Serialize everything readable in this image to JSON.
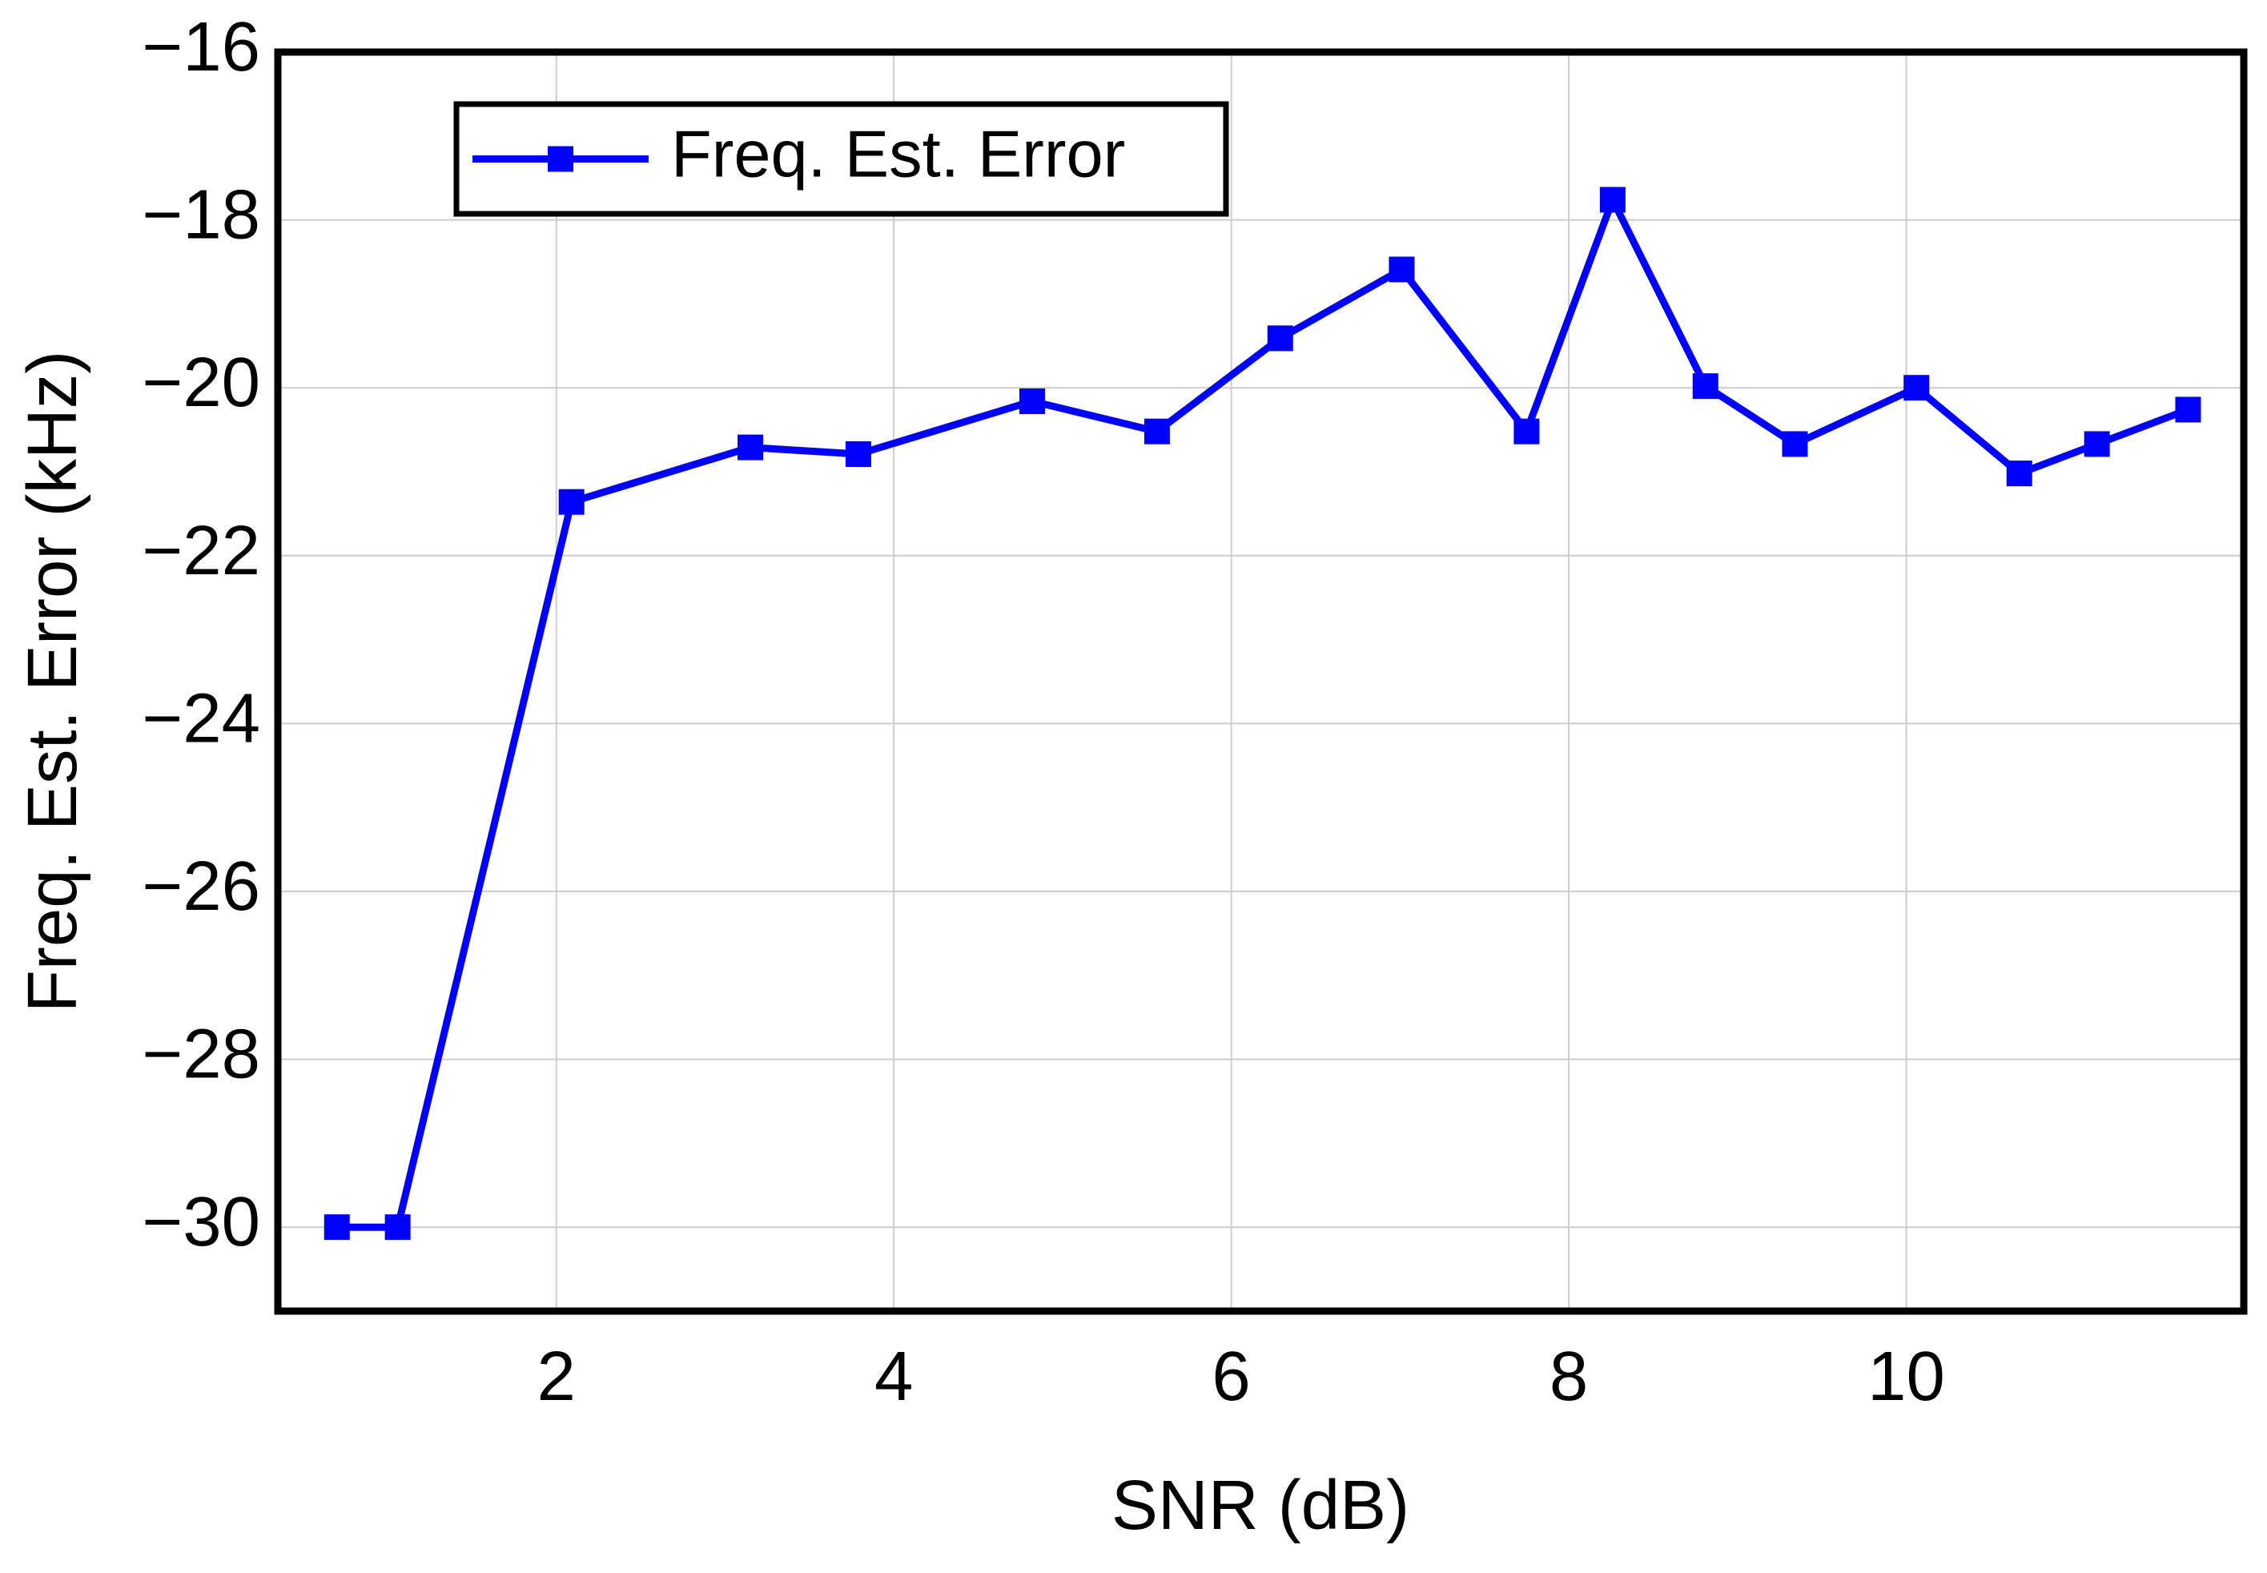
{
  "chart_data": {
    "type": "line",
    "x_label": "SNR (dB)",
    "y_label": "Freq. Est. Error (kHz)",
    "x": [
      0.7,
      1.06,
      2.09,
      3.15,
      3.79,
      4.82,
      5.56,
      6.29,
      7.01,
      7.75,
      8.26,
      8.81,
      9.34,
      10.06,
      10.67,
      11.13,
      11.67
    ],
    "series": [
      {
        "name": "Freq. Est. Error",
        "color": "#0000ff",
        "values": [
          -30.0,
          -30.0,
          -21.36,
          -20.71,
          -20.79,
          -20.16,
          -20.52,
          -19.41,
          -18.59,
          -20.52,
          -17.76,
          -19.98,
          -20.67,
          -20.0,
          -21.02,
          -20.67,
          -20.26
        ]
      }
    ],
    "xlim": [
      0.35,
      12.0
    ],
    "ylim": [
      -31,
      -16
    ],
    "xticks": [
      2,
      4,
      6,
      8,
      10
    ],
    "yticks": [
      {
        "value": -16,
        "label": "−16"
      },
      {
        "value": -18,
        "label": "−18"
      },
      {
        "value": -20,
        "label": "−20"
      },
      {
        "value": -22,
        "label": "−22"
      },
      {
        "value": -24,
        "label": "−24"
      },
      {
        "value": -26,
        "label": "−26"
      },
      {
        "value": -28,
        "label": "−28"
      },
      {
        "value": -30,
        "label": "−30"
      }
    ],
    "grid": true,
    "legend": "upper left"
  }
}
